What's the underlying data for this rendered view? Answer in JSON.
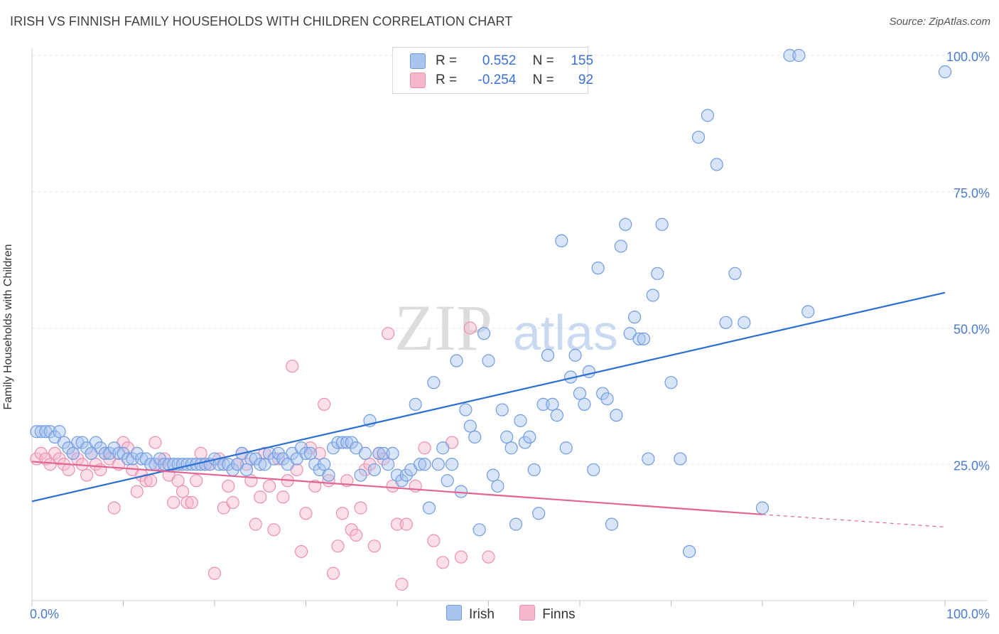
{
  "title": "IRISH VS FINNISH FAMILY HOUSEHOLDS WITH CHILDREN CORRELATION CHART",
  "source": "Source: ZipAtlas.com",
  "watermark": {
    "zip": "ZIP",
    "atlas": "atlas"
  },
  "legend": {
    "rows": [
      {
        "r_label": "R =",
        "r_value": "0.552",
        "n_label": "N =",
        "n_value": "155"
      },
      {
        "r_label": "R =",
        "r_value": "-0.254",
        "n_label": "N =",
        "n_value": "92"
      }
    ]
  },
  "bottom_legend": [
    "Irish",
    "Finns"
  ],
  "colors": {
    "irish_fill": "#a9c4ef",
    "irish_stroke": "#6f9be0",
    "irish_line": "#2a6fd1",
    "finns_fill": "#f6b7cb",
    "finns_stroke": "#ea8fae",
    "finns_line": "#e3648f",
    "grid": "#e3e3e3",
    "tick_text": "#4a7bd0"
  },
  "chart_data": {
    "type": "scatter",
    "title": "IRISH VS FINNISH FAMILY HOUSEHOLDS WITH CHILDREN CORRELATION CHART",
    "xlabel": "",
    "ylabel": "Family Households with Children",
    "xlim": [
      0,
      100
    ],
    "ylim": [
      0,
      100
    ],
    "x_tick_labels": [
      "0.0%",
      "100.0%"
    ],
    "y_ticks": [
      25,
      50,
      75,
      100
    ],
    "y_tick_labels": [
      "25.0%",
      "50.0%",
      "75.0%",
      "100.0%"
    ],
    "grid": "horizontal dashed",
    "legend_position": "top-center",
    "series": [
      {
        "name": "Irish",
        "r": 0.552,
        "n": 155,
        "trend": {
          "x": [
            0,
            100
          ],
          "y": [
            18.2,
            56.5
          ]
        },
        "points": [
          [
            0.5,
            31
          ],
          [
            1,
            31
          ],
          [
            1.5,
            31
          ],
          [
            2,
            31
          ],
          [
            2.5,
            30
          ],
          [
            3,
            31
          ],
          [
            3.5,
            29
          ],
          [
            4,
            28
          ],
          [
            4.5,
            27
          ],
          [
            5,
            29
          ],
          [
            5.5,
            29
          ],
          [
            6,
            28
          ],
          [
            6.5,
            27
          ],
          [
            7,
            29
          ],
          [
            7.5,
            28
          ],
          [
            8,
            27
          ],
          [
            8.5,
            27
          ],
          [
            9,
            28
          ],
          [
            9.5,
            27
          ],
          [
            10,
            27
          ],
          [
            10.5,
            26
          ],
          [
            11,
            26
          ],
          [
            11.5,
            27
          ],
          [
            12,
            26
          ],
          [
            12.5,
            26
          ],
          [
            13,
            25
          ],
          [
            13.5,
            25
          ],
          [
            14,
            26
          ],
          [
            14.5,
            25
          ],
          [
            15,
            25
          ],
          [
            15.5,
            25
          ],
          [
            16,
            25
          ],
          [
            16.5,
            25
          ],
          [
            17,
            25
          ],
          [
            17.5,
            25
          ],
          [
            18,
            25
          ],
          [
            18.5,
            25
          ],
          [
            19,
            25
          ],
          [
            19.5,
            25
          ],
          [
            20,
            26
          ],
          [
            20.5,
            25
          ],
          [
            21,
            25
          ],
          [
            21.5,
            25
          ],
          [
            22,
            24
          ],
          [
            22.5,
            25
          ],
          [
            23,
            27
          ],
          [
            23.5,
            24
          ],
          [
            24,
            26
          ],
          [
            24.5,
            26
          ],
          [
            25,
            25
          ],
          [
            25.5,
            25
          ],
          [
            26,
            27
          ],
          [
            26.5,
            26
          ],
          [
            27,
            27
          ],
          [
            27.5,
            26
          ],
          [
            28,
            25
          ],
          [
            28.5,
            27
          ],
          [
            29,
            26
          ],
          [
            29.5,
            28
          ],
          [
            30,
            27
          ],
          [
            30.5,
            27
          ],
          [
            31,
            25
          ],
          [
            31.5,
            24
          ],
          [
            32,
            25
          ],
          [
            32.5,
            23
          ],
          [
            33,
            28
          ],
          [
            33.5,
            29
          ],
          [
            34,
            29
          ],
          [
            34.5,
            29
          ],
          [
            35,
            29
          ],
          [
            35.5,
            28
          ],
          [
            36,
            23
          ],
          [
            36.5,
            27
          ],
          [
            37,
            33
          ],
          [
            37.5,
            24
          ],
          [
            38,
            27
          ],
          [
            38.5,
            27
          ],
          [
            39,
            25
          ],
          [
            39.5,
            27
          ],
          [
            40,
            23
          ],
          [
            40.5,
            22
          ],
          [
            41,
            23
          ],
          [
            41.5,
            24
          ],
          [
            42,
            36
          ],
          [
            42.5,
            25
          ],
          [
            43,
            25
          ],
          [
            43.5,
            17
          ],
          [
            44,
            40
          ],
          [
            44.5,
            25
          ],
          [
            45,
            28
          ],
          [
            45.5,
            22
          ],
          [
            46,
            25
          ],
          [
            46.5,
            44
          ],
          [
            47,
            20
          ],
          [
            47.5,
            35
          ],
          [
            48,
            32
          ],
          [
            48.5,
            30
          ],
          [
            49,
            13
          ],
          [
            49.5,
            49
          ],
          [
            50,
            44
          ],
          [
            50.5,
            23
          ],
          [
            51,
            21
          ],
          [
            51.5,
            35
          ],
          [
            52,
            30
          ],
          [
            52.5,
            28
          ],
          [
            53,
            14
          ],
          [
            53.5,
            33
          ],
          [
            54,
            29
          ],
          [
            54.5,
            30
          ],
          [
            55,
            24
          ],
          [
            55.5,
            16
          ],
          [
            56,
            36
          ],
          [
            56.5,
            45
          ],
          [
            57,
            36
          ],
          [
            57.5,
            34
          ],
          [
            58,
            66
          ],
          [
            58.5,
            28
          ],
          [
            59,
            41
          ],
          [
            59.5,
            45
          ],
          [
            60,
            38
          ],
          [
            60.5,
            36
          ],
          [
            61,
            42
          ],
          [
            61.5,
            24
          ],
          [
            62,
            61
          ],
          [
            62.5,
            38
          ],
          [
            63,
            37
          ],
          [
            63.5,
            14
          ],
          [
            64,
            34
          ],
          [
            64.5,
            65
          ],
          [
            65,
            69
          ],
          [
            65.5,
            49
          ],
          [
            66,
            52
          ],
          [
            66.5,
            48
          ],
          [
            67,
            48
          ],
          [
            67.5,
            26
          ],
          [
            68,
            56
          ],
          [
            68.5,
            60
          ],
          [
            69,
            69
          ],
          [
            70,
            40
          ],
          [
            71,
            26
          ],
          [
            72,
            9
          ],
          [
            73,
            85
          ],
          [
            74,
            89
          ],
          [
            75,
            80
          ],
          [
            76,
            51
          ],
          [
            77,
            60
          ],
          [
            78,
            51
          ],
          [
            80,
            17
          ],
          [
            83,
            100
          ],
          [
            84,
            100
          ],
          [
            85,
            53
          ],
          [
            100,
            97
          ]
        ]
      },
      {
        "name": "Finns",
        "r": -0.254,
        "n": 92,
        "trend": {
          "x": [
            0,
            80
          ],
          "y": [
            25.5,
            15.8
          ]
        },
        "trend_extension": {
          "x": [
            80,
            100
          ],
          "y": [
            15.8,
            13.5
          ]
        },
        "points": [
          [
            0.5,
            26
          ],
          [
            1,
            27
          ],
          [
            1.5,
            26
          ],
          [
            2,
            25
          ],
          [
            2.5,
            27
          ],
          [
            3,
            26
          ],
          [
            3.5,
            25
          ],
          [
            4,
            24
          ],
          [
            4.5,
            27
          ],
          [
            5,
            26
          ],
          [
            5.5,
            25
          ],
          [
            6,
            23
          ],
          [
            6.5,
            27
          ],
          [
            7,
            25
          ],
          [
            7.5,
            24
          ],
          [
            8,
            27
          ],
          [
            8.5,
            26
          ],
          [
            9,
            17
          ],
          [
            9.5,
            25
          ],
          [
            10,
            29
          ],
          [
            10.5,
            28
          ],
          [
            11,
            24
          ],
          [
            11.5,
            20
          ],
          [
            12,
            23
          ],
          [
            12.5,
            22
          ],
          [
            13,
            22
          ],
          [
            13.5,
            29
          ],
          [
            14,
            25
          ],
          [
            14.5,
            26
          ],
          [
            15,
            23
          ],
          [
            15.5,
            18
          ],
          [
            16,
            22
          ],
          [
            16.5,
            20
          ],
          [
            17,
            18
          ],
          [
            17.5,
            18
          ],
          [
            18,
            22
          ],
          [
            18.5,
            27
          ],
          [
            19,
            25
          ],
          [
            19.5,
            25
          ],
          [
            20,
            5
          ],
          [
            20.5,
            26
          ],
          [
            21,
            17
          ],
          [
            21.5,
            21
          ],
          [
            22,
            18
          ],
          [
            22.5,
            25
          ],
          [
            23,
            27
          ],
          [
            23.5,
            25
          ],
          [
            24,
            22
          ],
          [
            24.5,
            14
          ],
          [
            25,
            19
          ],
          [
            25.5,
            27
          ],
          [
            26,
            21
          ],
          [
            26.5,
            13
          ],
          [
            27,
            26
          ],
          [
            27.5,
            19
          ],
          [
            28,
            22
          ],
          [
            28.5,
            43
          ],
          [
            29,
            24
          ],
          [
            29.5,
            9
          ],
          [
            30,
            16
          ],
          [
            30.5,
            28
          ],
          [
            31,
            21
          ],
          [
            31.5,
            27
          ],
          [
            32,
            36
          ],
          [
            32.5,
            22
          ],
          [
            33,
            5
          ],
          [
            33.5,
            10
          ],
          [
            34,
            16
          ],
          [
            34.5,
            22
          ],
          [
            35,
            13
          ],
          [
            35.5,
            12
          ],
          [
            36,
            17
          ],
          [
            36.5,
            24
          ],
          [
            37,
            25
          ],
          [
            37.5,
            10
          ],
          [
            38,
            27
          ],
          [
            38.5,
            26
          ],
          [
            39,
            49
          ],
          [
            39.5,
            21
          ],
          [
            40,
            14
          ],
          [
            40.5,
            3
          ],
          [
            41,
            14
          ],
          [
            42,
            21
          ],
          [
            43,
            28
          ],
          [
            44,
            11
          ],
          [
            45,
            7
          ],
          [
            46,
            29
          ],
          [
            47,
            8
          ],
          [
            48,
            50
          ],
          [
            50,
            8
          ]
        ]
      }
    ]
  }
}
